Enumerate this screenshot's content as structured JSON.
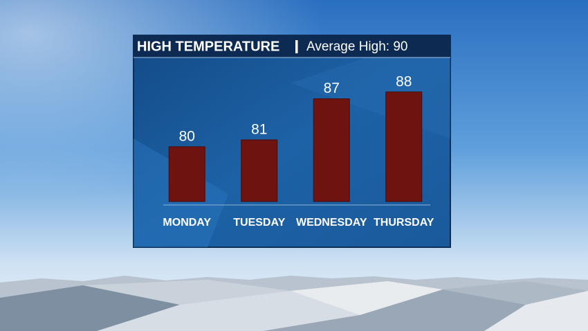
{
  "chart_data": {
    "type": "bar",
    "title": "HIGH TEMPERATURE",
    "subtitle": "Average High: 90",
    "categories": [
      "MONDAY",
      "TUESDAY",
      "WEDNESDAY",
      "THURSDAY"
    ],
    "values": [
      80,
      81,
      87,
      88
    ],
    "color": "#6e1310",
    "ylim": [
      72,
      90
    ]
  }
}
